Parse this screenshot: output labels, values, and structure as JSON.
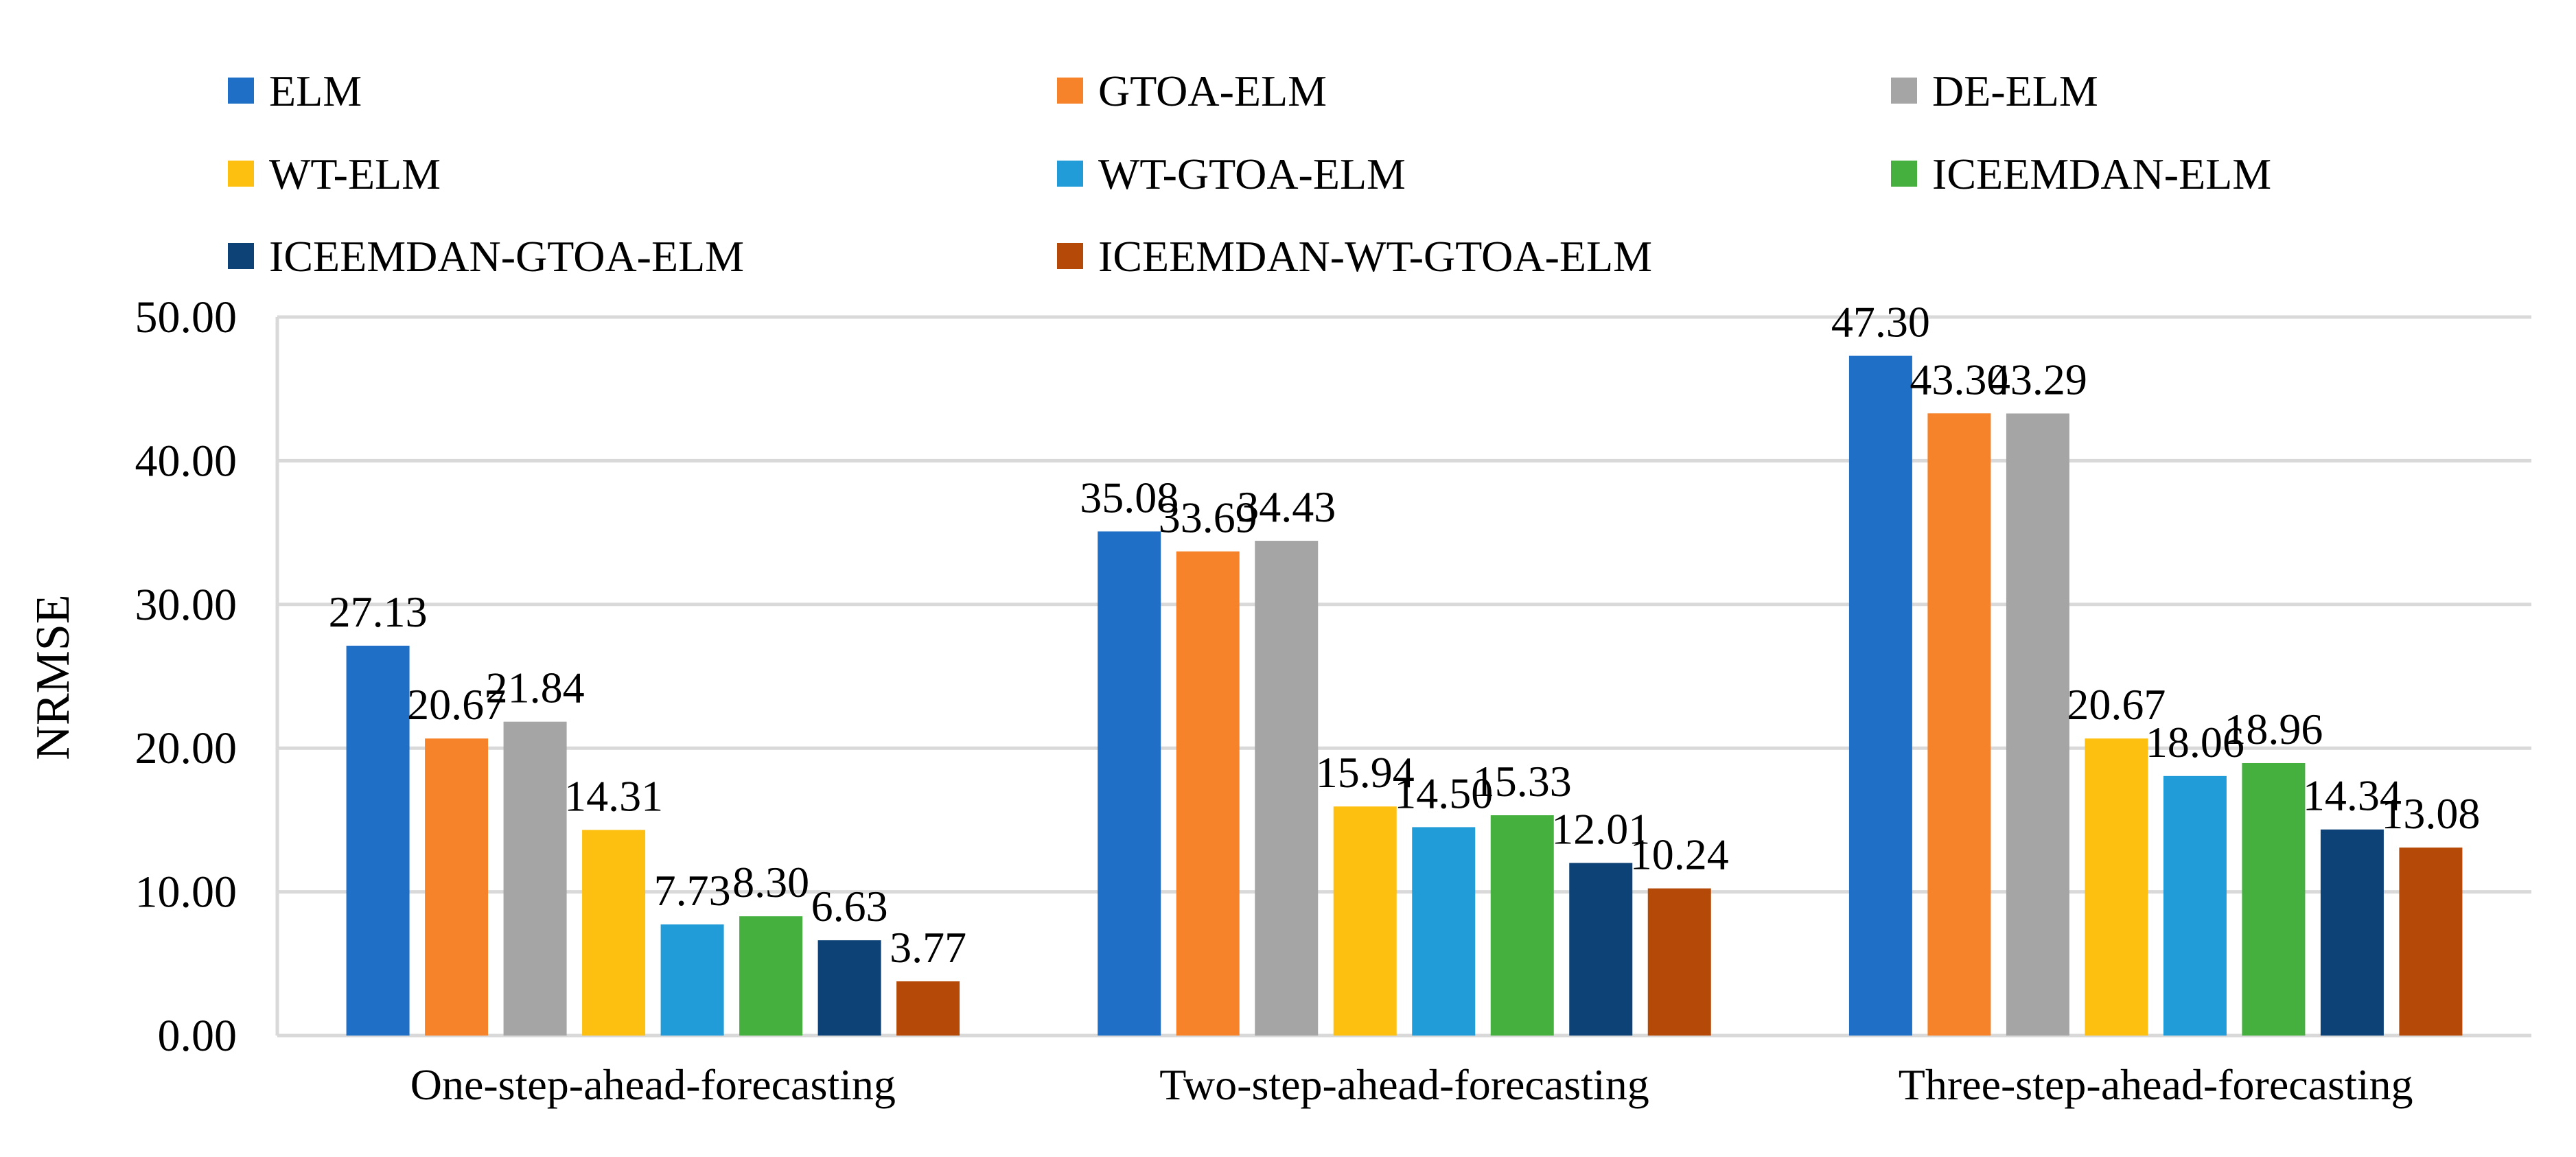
{
  "chart_data": {
    "type": "bar",
    "title": "",
    "xlabel": "",
    "ylabel": "NRMSE",
    "ylim": [
      0,
      50
    ],
    "yticks": [
      "0.00",
      "10.00",
      "20.00",
      "30.00",
      "40.00",
      "50.00"
    ],
    "grid": true,
    "legend_position": "top",
    "categories": [
      "One-step-ahead-forecasting",
      "Two-step-ahead-forecasting",
      "Three-step-ahead-forecasting"
    ],
    "series": [
      {
        "name": "ELM",
        "color": "#1f6fc6",
        "values": [
          27.13,
          35.08,
          47.3
        ],
        "labels": [
          "27.13",
          "35.08",
          "47.30"
        ]
      },
      {
        "name": "GTOA-ELM",
        "color": "#f6822a",
        "values": [
          20.67,
          33.69,
          43.3
        ],
        "labels": [
          "20.67",
          "33.69",
          "43.30"
        ]
      },
      {
        "name": "DE-ELM",
        "color": "#a5a5a5",
        "values": [
          21.84,
          34.43,
          43.29
        ],
        "labels": [
          "21.84",
          "34.43",
          "43.29"
        ]
      },
      {
        "name": "WT-ELM",
        "color": "#fdc010",
        "values": [
          14.31,
          15.94,
          20.67
        ],
        "labels": [
          "14.31",
          "15.94",
          "20.67"
        ]
      },
      {
        "name": "WT-GTOA-ELM",
        "color": "#229cd8",
        "values": [
          7.73,
          14.5,
          18.06
        ],
        "labels": [
          "7.73",
          "14.50",
          "18.06"
        ]
      },
      {
        "name": "ICEEMDAN-ELM",
        "color": "#46b03f",
        "values": [
          8.3,
          15.33,
          18.96
        ],
        "labels": [
          "8.30",
          "15.33",
          "18.96"
        ]
      },
      {
        "name": "ICEEMDAN-GTOA-ELM",
        "color": "#0d4276",
        "values": [
          6.63,
          12.01,
          14.34
        ],
        "labels": [
          "6.63",
          "12.01",
          "14.34"
        ]
      },
      {
        "name": "ICEEMDAN-WT-GTOA-ELM",
        "color": "#b54907",
        "values": [
          3.77,
          10.24,
          13.08
        ],
        "labels": [
          "3.77",
          "10.24",
          "13.08"
        ]
      }
    ]
  }
}
